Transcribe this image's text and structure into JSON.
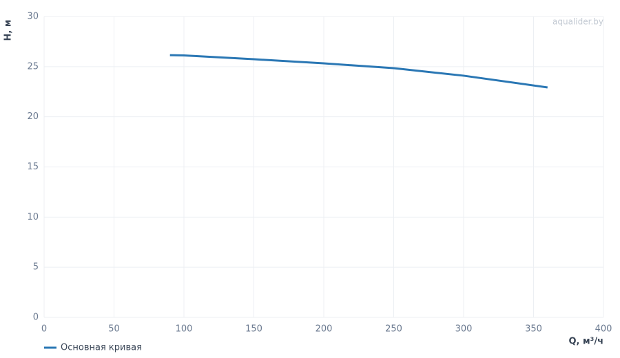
{
  "chart_data": {
    "type": "line",
    "watermark": "aqualider.by",
    "x_label": "Q, м³/ч",
    "y_label": "H, м",
    "x": [
      90,
      100,
      150,
      200,
      250,
      300,
      360
    ],
    "series": [
      {
        "name": "Основная кривая",
        "color": "#2a77b4",
        "values": [
          26.15,
          26.12,
          25.74,
          25.33,
          24.85,
          24.1,
          22.93
        ]
      }
    ],
    "xlim": [
      0,
      400
    ],
    "xticks": [
      0,
      50,
      100,
      150,
      200,
      250,
      300,
      350,
      400
    ],
    "ylim": [
      0,
      30
    ],
    "yticks": [
      0,
      5,
      10,
      15,
      20,
      25,
      30
    ],
    "grid": true,
    "legend": "bottom-left"
  }
}
